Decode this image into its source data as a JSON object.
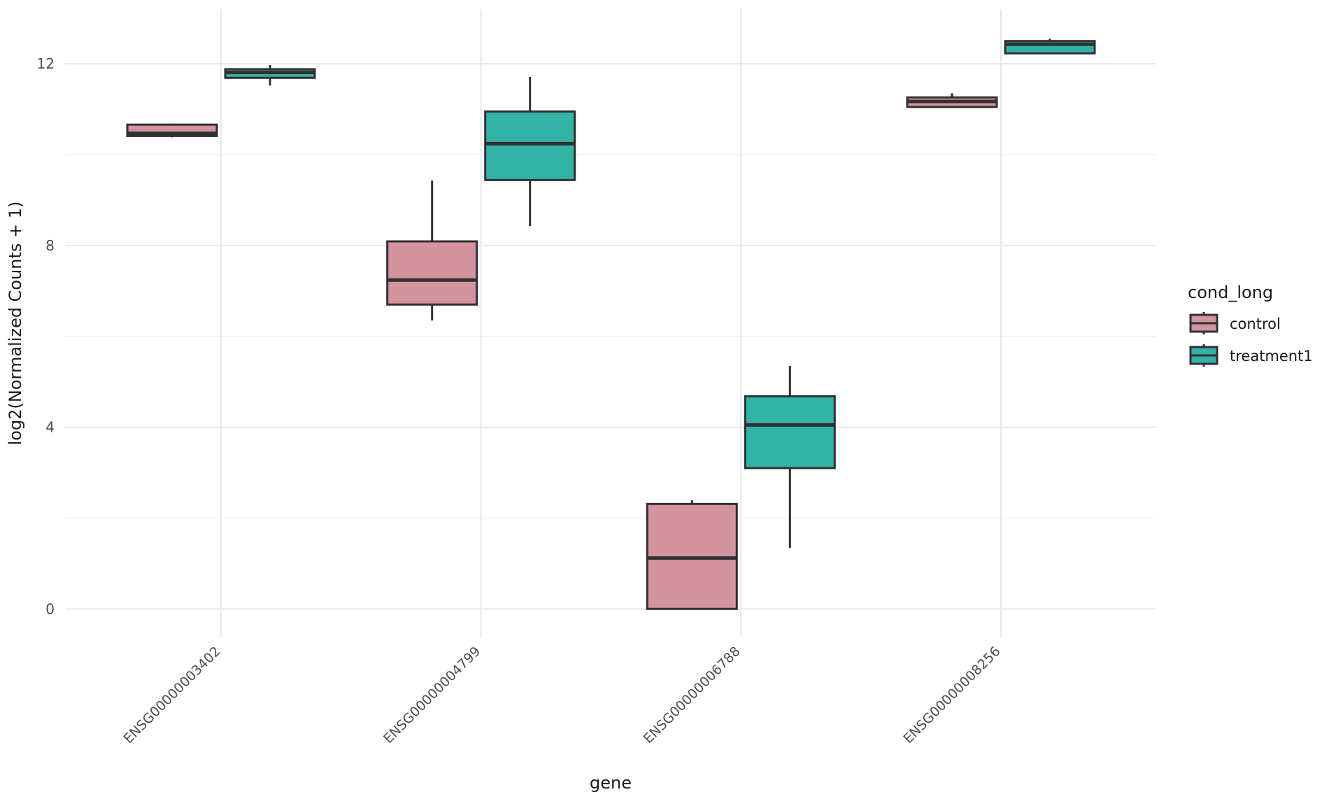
{
  "chart_data": {
    "type": "boxplot",
    "title": "",
    "xlabel": "gene",
    "ylabel": "log2(Normalized Counts + 1)",
    "categories": [
      "ENSG00000003402",
      "ENSG00000004799",
      "ENSG00000006788",
      "ENSG00000008256"
    ],
    "x_label_angle_deg": 45,
    "y_ticks": [
      0,
      4,
      8,
      12
    ],
    "y_minor_ticks": [
      2,
      6,
      10
    ],
    "ylim": [
      -0.65,
      13.2
    ],
    "grid": true,
    "legend": {
      "title": "cond_long",
      "position": "right"
    },
    "series": [
      {
        "name": "control",
        "color": "#D3939F",
        "boxes": [
          {
            "min": 10.38,
            "q1": 10.41,
            "median": 10.47,
            "q3": 10.66,
            "max": 10.68
          },
          {
            "min": 6.35,
            "q1": 6.7,
            "median": 7.24,
            "q3": 8.09,
            "max": 9.43
          },
          {
            "min": 0.0,
            "q1": 0.0,
            "median": 1.12,
            "q3": 2.31,
            "max": 2.39
          },
          {
            "min": 11.04,
            "q1": 11.05,
            "median": 11.17,
            "q3": 11.26,
            "max": 11.35
          }
        ]
      },
      {
        "name": "treatment1",
        "color": "#33B2A6",
        "boxes": [
          {
            "min": 11.52,
            "q1": 11.69,
            "median": 11.81,
            "q3": 11.88,
            "max": 11.97
          },
          {
            "min": 8.43,
            "q1": 9.44,
            "median": 10.24,
            "q3": 10.95,
            "max": 11.71
          },
          {
            "min": 1.34,
            "q1": 3.1,
            "median": 4.05,
            "q3": 4.68,
            "max": 5.35
          },
          {
            "min": 12.23,
            "q1": 12.23,
            "median": 12.43,
            "q3": 12.5,
            "max": 12.55
          }
        ]
      }
    ],
    "colors": {
      "background": "#FFFFFF",
      "box_stroke": "#303030",
      "grid_major": "#E8E8E8",
      "grid_minor": "#F2F2F2",
      "tick_text": "#4D4D4D",
      "title_text": "#1A1A1A"
    }
  }
}
